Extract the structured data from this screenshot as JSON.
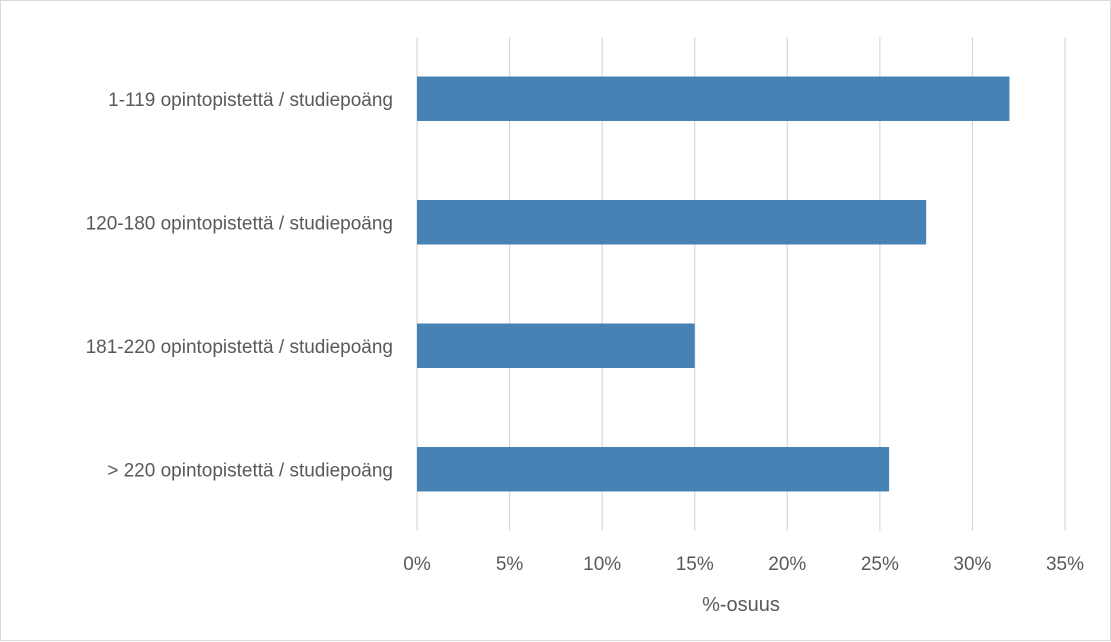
{
  "chart_data": {
    "type": "bar",
    "orientation": "horizontal",
    "categories": [
      "1-119 opintopistettä / studiepoäng",
      "120-180 opintopistettä / studiepoäng",
      "181-220 opintopistettä / studiepoäng",
      "> 220 opintopistettä / studiepoäng"
    ],
    "values": [
      32.0,
      27.5,
      15.0,
      25.5
    ],
    "xlim": [
      0,
      35
    ],
    "xticks": [
      0,
      5,
      10,
      15,
      20,
      25,
      30,
      35
    ],
    "xtick_labels": [
      "0%",
      "5%",
      "10%",
      "15%",
      "20%",
      "25%",
      "30%",
      "35%"
    ],
    "title": "",
    "xlabel": "%-osuus",
    "ylabel": "",
    "grid": "vertical",
    "legend": "none",
    "bar_color": "#4682b4",
    "grid_color": "#d9d9d9"
  }
}
